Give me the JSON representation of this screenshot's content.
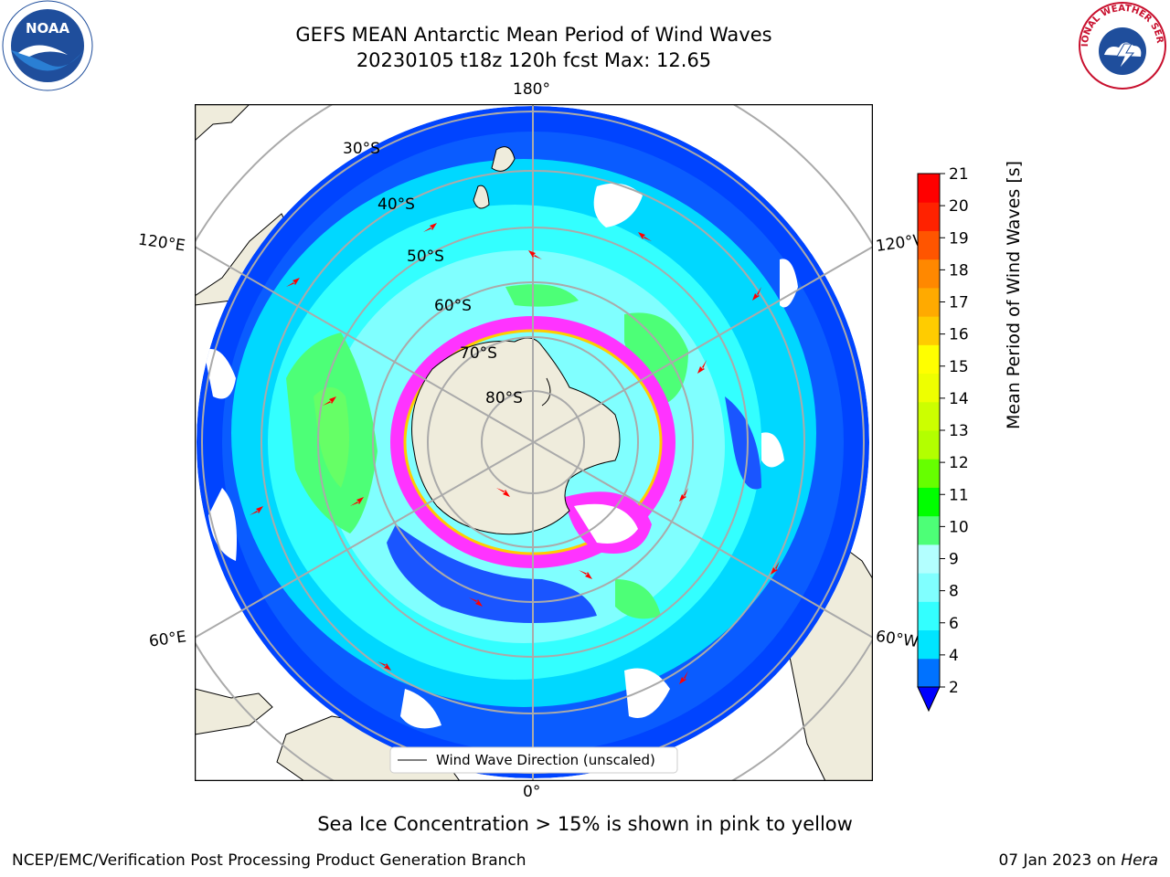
{
  "title": {
    "line1": "GEFS MEAN Antarctic Mean Period of Wind Waves",
    "line2": "20230105 t18z 120h fcst   Max: 12.65"
  },
  "logos": {
    "left": "noaa-logo",
    "right": "nws-logo",
    "left_text": "NOAA",
    "right_text": "NATIONAL WEATHER SERVICE"
  },
  "map": {
    "projection": "south-polar-stereographic",
    "longitude_labels": {
      "top": "180°",
      "bottom": "0°",
      "upper_left": "120°E",
      "upper_right": "120°W",
      "lower_left": "60°E",
      "lower_right": "60°W"
    },
    "latitude_labels": [
      "30°S",
      "40°S",
      "50°S",
      "60°S",
      "70°S",
      "80°S"
    ],
    "legend_text": "Wind Wave Direction (unscaled)",
    "colors": {
      "land": "#efecdc",
      "sea_ice": "#ff33ff",
      "gridline": "#aaaaaa",
      "arrow": "#ff0000"
    }
  },
  "colorbar": {
    "label": "Mean Period of Wind Waves [s]",
    "ticks": [
      "2",
      "4",
      "6",
      "8",
      "9",
      "10",
      "11",
      "12",
      "13",
      "14",
      "15",
      "16",
      "17",
      "18",
      "19",
      "20",
      "21"
    ],
    "colors": [
      "#0072ff",
      "#00e5ff",
      "#33ffff",
      "#80ffff",
      "#b3ffff",
      "#4dff77",
      "#00ff00",
      "#66ff00",
      "#b3ff00",
      "#ccff00",
      "#eeff00",
      "#ffff00",
      "#ffcc00",
      "#ffaa00",
      "#ff8800",
      "#ff5500",
      "#ff2200",
      "#ff0000"
    ],
    "under_color": "#0000ff"
  },
  "footer": {
    "caption": "Sea Ice Concentration > 15% is shown in pink to yellow",
    "credit": "NCEP/EMC/Verification Post Processing Product Generation Branch",
    "date_prefix": "07 Jan 2023 on ",
    "machine": "Hera"
  }
}
